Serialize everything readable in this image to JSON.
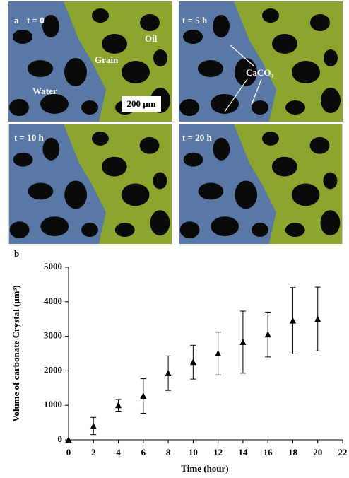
{
  "panel_a": {
    "label": "a",
    "frames": [
      {
        "time": "t = 0",
        "labels": [
          "Grain",
          "Oil",
          "Water"
        ],
        "scale": "200 μm"
      },
      {
        "time": "t = 5 h",
        "labels": [
          "CaCO₃"
        ]
      },
      {
        "time": "t = 10 h"
      },
      {
        "time": "t = 20 h"
      }
    ]
  },
  "chart_data": {
    "type": "scatter",
    "panel_label": "b",
    "xlabel": "Time (hour)",
    "ylabel": "Volume of carbonate Crystal  (μm³)",
    "x": [
      0,
      2,
      4,
      6,
      8,
      10,
      12,
      14,
      16,
      18,
      20
    ],
    "values": [
      0,
      400,
      1000,
      1270,
      1930,
      2250,
      2500,
      2830,
      3050,
      3450,
      3500
    ],
    "errors": [
      0,
      250,
      170,
      500,
      500,
      490,
      620,
      900,
      650,
      960,
      925
    ],
    "color": "#000000",
    "marker": "triangle",
    "xlim": [
      0,
      22
    ],
    "xticks": [
      0,
      2,
      4,
      6,
      8,
      10,
      12,
      14,
      16,
      18,
      20,
      22
    ],
    "ylim": [
      0,
      5000
    ],
    "yticks": [
      0,
      1000,
      2000,
      3000,
      4000,
      5000
    ]
  }
}
